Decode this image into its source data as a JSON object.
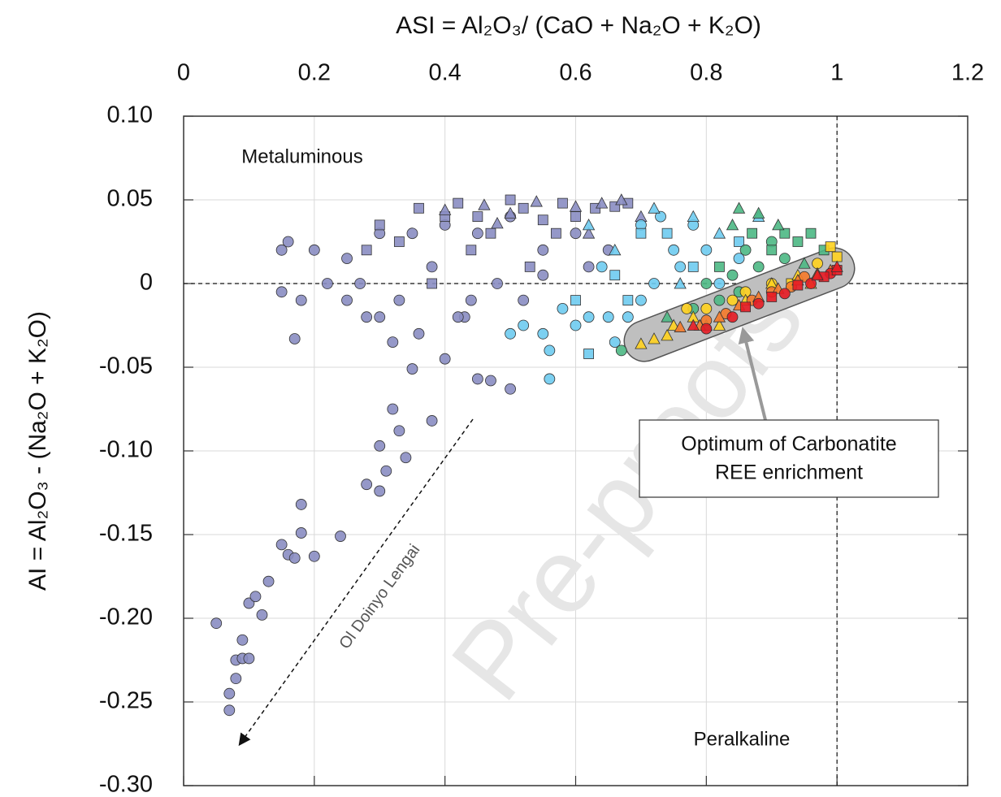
{
  "chart_data": {
    "type": "scatter",
    "x_label": "ASI = Al₂O₃/ (CaO + Na₂O + K₂O)",
    "y_label": "AI = Al₂O₃ - (Na₂O + K₂O)",
    "xlim": [
      0,
      1.2
    ],
    "ylim": [
      -0.3,
      0.1
    ],
    "xticks": [
      0,
      0.2,
      0.4,
      0.6,
      0.8,
      1,
      1.2
    ],
    "yticks": [
      {
        "value": 0.1,
        "label": "0.10"
      },
      0.05,
      0,
      -0.05,
      {
        "value": -0.1,
        "label": "-0.10"
      },
      -0.15,
      {
        "value": -0.2,
        "label": "-0.20"
      },
      -0.25,
      {
        "value": -0.3,
        "label": "-0.30"
      }
    ],
    "grid": true,
    "hlines": [
      0
    ],
    "vlines": [
      1
    ],
    "annotations": {
      "metaluminous": "Metaluminous",
      "peralkaline": "Peralkaline",
      "lengai": "Ol Doinyo Lengai",
      "callout": [
        "Optimum of Carbonatite",
        "REE enrichment"
      ],
      "watermark": "Pre-proofs"
    },
    "series": [
      {
        "color": "#8a8dc2",
        "marker": "circle",
        "x": [
          0.05,
          0.07,
          0.07,
          0.08,
          0.08,
          0.09,
          0.09,
          0.1,
          0.1,
          0.11,
          0.12,
          0.13,
          0.15,
          0.16,
          0.17,
          0.18,
          0.18,
          0.2,
          0.24,
          0.28,
          0.3,
          0.3,
          0.31,
          0.32,
          0.33,
          0.34,
          0.35,
          0.3,
          0.32,
          0.38,
          0.4,
          0.43,
          0.45,
          0.47,
          0.5,
          0.52,
          0.55,
          0.15,
          0.16,
          0.18,
          0.2,
          0.22,
          0.25,
          0.27,
          0.3,
          0.33,
          0.35,
          0.38,
          0.4,
          0.42,
          0.45,
          0.48,
          0.5,
          0.55,
          0.6,
          0.62,
          0.65,
          0.15,
          0.17,
          0.25,
          0.28,
          0.36,
          0.44
        ],
        "y": [
          -0.203,
          -0.255,
          -0.245,
          -0.236,
          -0.225,
          -0.213,
          -0.224,
          -0.191,
          -0.224,
          -0.187,
          -0.198,
          -0.178,
          -0.156,
          -0.162,
          -0.164,
          -0.132,
          -0.149,
          -0.163,
          -0.151,
          -0.12,
          -0.097,
          -0.124,
          -0.112,
          -0.075,
          -0.088,
          -0.104,
          -0.051,
          -0.02,
          -0.035,
          -0.082,
          -0.045,
          -0.02,
          -0.057,
          -0.058,
          -0.063,
          -0.01,
          0.005,
          0.02,
          0.025,
          -0.01,
          0.02,
          0.0,
          0.015,
          0.0,
          0.03,
          -0.01,
          0.03,
          0.01,
          0.035,
          -0.02,
          0.03,
          0.0,
          0.04,
          0.02,
          0.03,
          0.01,
          0.02,
          -0.005,
          -0.033,
          -0.01,
          -0.02,
          -0.03,
          -0.01
        ]
      },
      {
        "color": "#8a8dc2",
        "marker": "square",
        "x": [
          0.3,
          0.33,
          0.36,
          0.4,
          0.42,
          0.45,
          0.5,
          0.52,
          0.55,
          0.58,
          0.6,
          0.63,
          0.66,
          0.68,
          0.28,
          0.38,
          0.47,
          0.53,
          0.57,
          0.44
        ],
        "y": [
          0.035,
          0.025,
          0.045,
          0.04,
          0.048,
          0.04,
          0.05,
          0.045,
          0.038,
          0.048,
          0.04,
          0.045,
          0.046,
          0.048,
          0.02,
          0.0,
          0.03,
          0.01,
          0.03,
          0.02
        ]
      },
      {
        "color": "#8a8dc2",
        "marker": "triangle",
        "x": [
          0.4,
          0.46,
          0.5,
          0.54,
          0.6,
          0.64,
          0.67,
          0.7,
          0.62,
          0.48
        ],
        "y": [
          0.044,
          0.047,
          0.042,
          0.049,
          0.046,
          0.048,
          0.05,
          0.04,
          0.03,
          0.036
        ]
      },
      {
        "color": "#6ecbef",
        "marker": "circle",
        "x": [
          0.56,
          0.5,
          0.52,
          0.55,
          0.58,
          0.6,
          0.62,
          0.65,
          0.66,
          0.68,
          0.7,
          0.72,
          0.75,
          0.76,
          0.78,
          0.8,
          0.73,
          0.7,
          0.82,
          0.85,
          0.64,
          0.56
        ],
        "y": [
          -0.057,
          -0.03,
          -0.025,
          -0.03,
          -0.015,
          -0.025,
          -0.02,
          -0.02,
          -0.035,
          -0.02,
          -0.01,
          0.0,
          0.02,
          0.01,
          0.035,
          0.02,
          0.04,
          0.035,
          0.0,
          0.015,
          0.01,
          -0.04
        ]
      },
      {
        "color": "#6ecbef",
        "marker": "square",
        "x": [
          0.62,
          0.6,
          0.66,
          0.7,
          0.74,
          0.78,
          0.85,
          0.68
        ],
        "y": [
          -0.042,
          -0.01,
          0.005,
          0.03,
          0.03,
          0.01,
          0.025,
          -0.01
        ]
      },
      {
        "color": "#6ecbef",
        "marker": "triangle",
        "x": [
          0.62,
          0.66,
          0.72,
          0.78,
          0.82,
          0.88,
          0.76
        ],
        "y": [
          0.035,
          0.02,
          0.045,
          0.04,
          0.03,
          0.04,
          0.0
        ]
      },
      {
        "color": "#4db884",
        "marker": "circle",
        "x": [
          0.67,
          0.8,
          0.82,
          0.84,
          0.86,
          0.88,
          0.9,
          0.92,
          0.85,
          0.78
        ],
        "y": [
          -0.04,
          0.0,
          -0.01,
          0.005,
          0.02,
          0.01,
          0.025,
          0.015,
          -0.005,
          -0.015
        ]
      },
      {
        "color": "#4db884",
        "marker": "square",
        "x": [
          0.87,
          0.9,
          0.94,
          0.96,
          0.98,
          0.92,
          0.82
        ],
        "y": [
          0.03,
          0.02,
          0.025,
          0.03,
          0.02,
          0.03,
          0.01
        ]
      },
      {
        "color": "#4db884",
        "marker": "triangle",
        "x": [
          0.85,
          0.88,
          0.91,
          0.84,
          0.95,
          0.74,
          0.8
        ],
        "y": [
          0.045,
          0.042,
          0.035,
          0.035,
          0.012,
          -0.02,
          -0.025
        ]
      },
      {
        "color": "#ffd21f",
        "marker": "circle",
        "x": [
          0.77,
          0.8,
          0.84,
          0.86,
          0.97,
          0.9
        ],
        "y": [
          -0.015,
          -0.015,
          -0.01,
          -0.005,
          0.012,
          0.0
        ]
      },
      {
        "color": "#ffd21f",
        "marker": "square",
        "x": [
          0.99,
          1.0,
          0.93
        ],
        "y": [
          0.022,
          0.016,
          0.0
        ]
      },
      {
        "color": "#ffd21f",
        "marker": "triangle",
        "x": [
          0.7,
          0.72,
          0.75,
          0.78,
          0.82,
          0.86,
          0.9,
          0.94,
          0.96,
          0.74
        ],
        "y": [
          -0.036,
          -0.033,
          -0.025,
          -0.02,
          -0.025,
          -0.01,
          0.0,
          0.005,
          0.0,
          -0.031
        ]
      },
      {
        "color": "#f57a2a",
        "marker": "circle",
        "x": [
          0.8,
          0.83,
          0.87,
          0.9,
          0.93,
          0.95
        ],
        "y": [
          -0.022,
          -0.018,
          -0.01,
          -0.005,
          -0.002,
          0.004
        ]
      },
      {
        "color": "#f57a2a",
        "marker": "triangle",
        "x": [
          0.76,
          0.79,
          0.82,
          0.85,
          0.88,
          0.91,
          0.94,
          0.97,
          0.99
        ],
        "y": [
          -0.026,
          -0.025,
          -0.02,
          -0.013,
          -0.008,
          -0.003,
          0.002,
          0.006,
          0.008
        ]
      },
      {
        "color": "#e51b24",
        "marker": "circle",
        "x": [
          0.8,
          0.84,
          0.88,
          0.92,
          0.96,
          0.99
        ],
        "y": [
          -0.027,
          -0.02,
          -0.012,
          -0.006,
          0.0,
          0.006
        ]
      },
      {
        "color": "#e51b24",
        "marker": "square",
        "x": [
          0.86,
          0.9,
          0.94,
          0.98,
          1.0
        ],
        "y": [
          -0.014,
          -0.008,
          -0.001,
          0.004,
          0.008
        ]
      },
      {
        "color": "#e51b24",
        "marker": "triangle",
        "x": [
          0.78,
          0.97,
          1.0
        ],
        "y": [
          -0.025,
          0.005,
          0.01
        ]
      }
    ]
  }
}
